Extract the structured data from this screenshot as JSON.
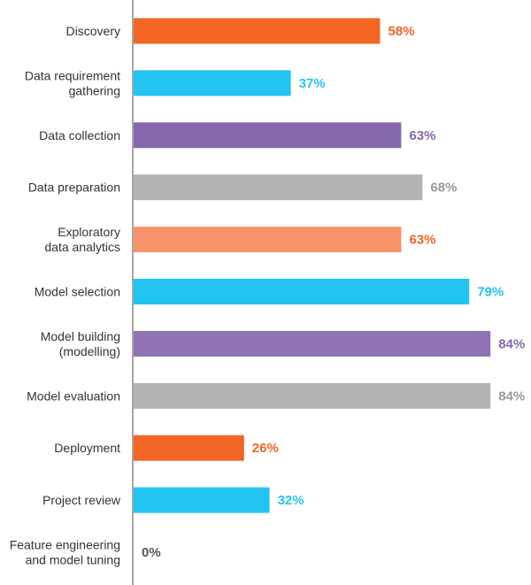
{
  "chart_data": {
    "type": "bar",
    "orientation": "horizontal",
    "categories": [
      [
        "Discovery"
      ],
      [
        "Data requirement",
        "gathering"
      ],
      [
        "Data collection"
      ],
      [
        "Data preparation"
      ],
      [
        "Exploratory",
        "data analytics"
      ],
      [
        "Model selection"
      ],
      [
        "Model building",
        "(modelling)"
      ],
      [
        "Model evaluation"
      ],
      [
        "Deployment"
      ],
      [
        "Project review"
      ],
      [
        "Feature engineering",
        "and model tuning"
      ]
    ],
    "values": [
      58,
      37,
      63,
      68,
      63,
      79,
      84,
      84,
      26,
      32,
      0
    ],
    "value_labels": [
      "58%",
      "37%",
      "63%",
      "68%",
      "63%",
      "79%",
      "84%",
      "84%",
      "26%",
      "32%",
      "0%"
    ],
    "colors": [
      "#f26522",
      "#22c4f2",
      "#8667ad",
      "#b3b3b3",
      "#f7936a",
      "#22c4f2",
      "#8f73b3",
      "#b3b3b3",
      "#f26522",
      "#22c4f2",
      "#b3b3b3"
    ],
    "label_colors": [
      "#f26522",
      "#22c4f2",
      "#8667ad",
      "#9a9a9a",
      "#f26522",
      "#22c4f2",
      "#8667ad",
      "#9a9a9a",
      "#f26522",
      "#22c4f2",
      "#555555"
    ],
    "xlim": [
      0,
      100
    ],
    "grid": false,
    "axis_color": "#888888"
  }
}
